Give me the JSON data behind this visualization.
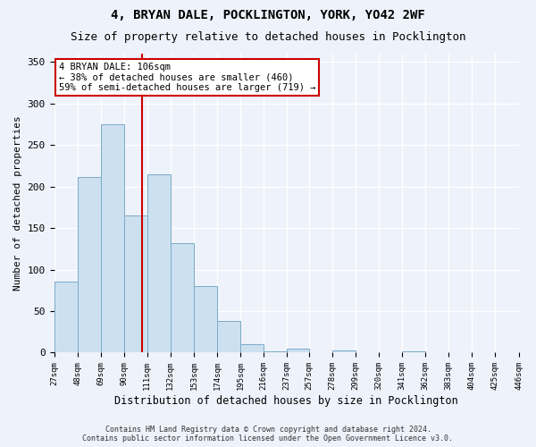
{
  "title": "4, BRYAN DALE, POCKLINGTON, YORK, YO42 2WF",
  "subtitle": "Size of property relative to detached houses in Pocklington",
  "xlabel": "Distribution of detached houses by size in Pocklington",
  "ylabel": "Number of detached properties",
  "footer_line1": "Contains HM Land Registry data © Crown copyright and database right 2024.",
  "footer_line2": "Contains public sector information licensed under the Open Government Licence v3.0.",
  "bins": [
    27,
    48,
    69,
    90,
    111,
    132,
    153,
    174,
    195,
    216,
    237,
    257,
    278,
    299,
    320,
    341,
    362,
    383,
    404,
    425,
    446
  ],
  "bar_heights": [
    85,
    212,
    275,
    165,
    215,
    132,
    80,
    38,
    10,
    2,
    5,
    1,
    3,
    1,
    0,
    2,
    0,
    1,
    0,
    1
  ],
  "bar_color": "#cce0f0",
  "bar_edge_color": "#7aaac8",
  "property_size": 106,
  "vline_color": "#cc0000",
  "annotation_line1": "4 BRYAN DALE: 106sqm",
  "annotation_line2": "← 38% of detached houses are smaller (460)",
  "annotation_line3": "59% of semi-detached houses are larger (719) →",
  "annotation_box_color": "#ffffff",
  "annotation_box_edge": "#cc0000",
  "ylim": [
    0,
    360
  ],
  "yticks": [
    0,
    50,
    100,
    150,
    200,
    250,
    300,
    350
  ],
  "background_color": "#eef2fb",
  "plot_background": "#eef2fb",
  "grid_color": "#ffffff",
  "title_fontsize": 10,
  "subtitle_fontsize": 9
}
